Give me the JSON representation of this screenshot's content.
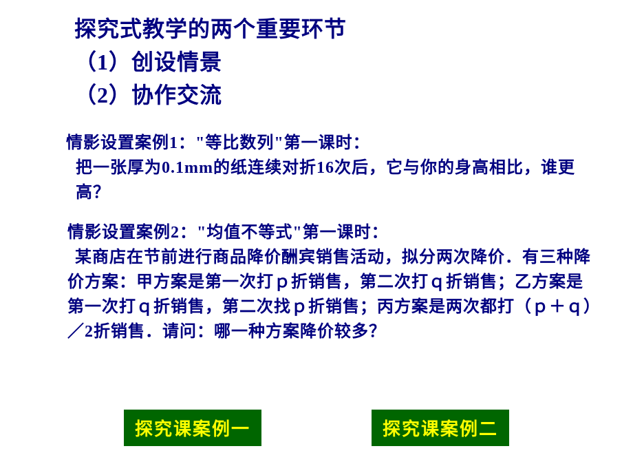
{
  "heading": {
    "line1": "探究式教学的两个重要环节",
    "line2": "（1）创设情景",
    "line3": "（2）协作交流"
  },
  "case1": {
    "title": "情影设置案例1：\"等比数列\"第一课时：",
    "body": "把一张厚为0.1mm的纸连续对折16次后，它与你的身高相比，谁更高？"
  },
  "case2": {
    "title": "情影设置案例2：\"均值不等式\"第一课时：",
    "body": "　某商店在节前进行商品降价酬宾销售活动，拟分两次降价．有三种降价方案：甲方案是第一次打ｐ折销售，第二次打ｑ折销售；乙方案是第一次打ｑ折销售，第二次找ｐ折销售；丙方案是两次都打（ｐ＋ｑ）／2折销售．请问：哪一种方案降价较多？"
  },
  "buttons": {
    "btn1": "探究课案例一",
    "btn2": "探究课案例二"
  },
  "style": {
    "heading_color": "#000080",
    "body_color": "#000080",
    "btn_bg": "#006600",
    "btn_fg": "#ffff00",
    "page_bg": "#ffffff",
    "heading_fontsize": 32,
    "body_fontsize": 24,
    "btn_fontsize": 26
  }
}
